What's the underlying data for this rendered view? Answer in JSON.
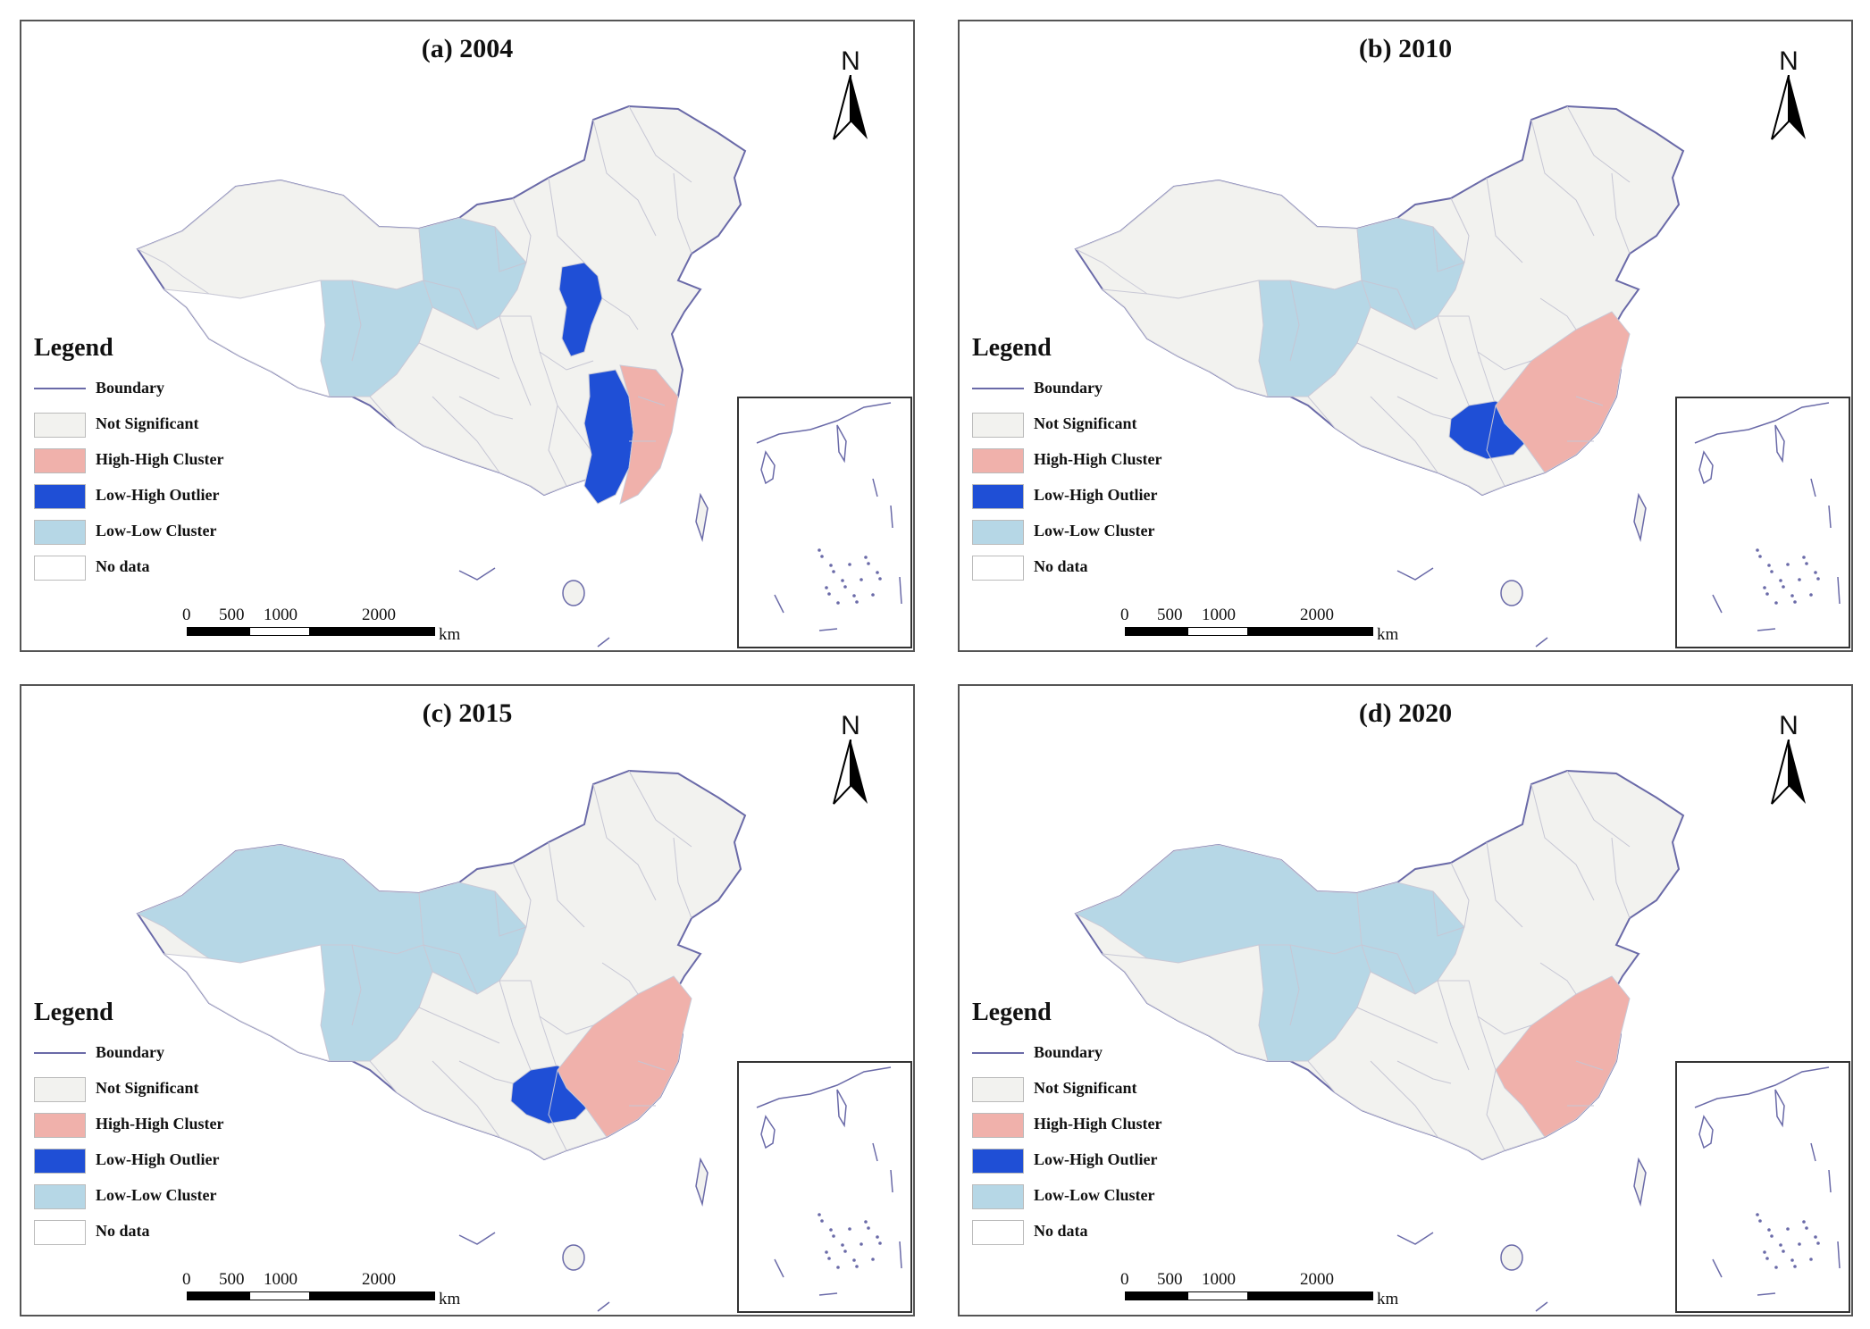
{
  "colors": {
    "boundary": "#6a6aa8",
    "not_significant": "#f2f2ef",
    "high_high": "#f0b1ab",
    "low_high": "#1f4fd6",
    "low_low": "#b6d7e6",
    "no_data": "#ffffff"
  },
  "legend": {
    "title": "Legend",
    "items": [
      {
        "label": "Boundary",
        "key": "boundary"
      },
      {
        "label": "Not Significant",
        "key": "not_significant"
      },
      {
        "label": "High-High Cluster",
        "key": "high_high"
      },
      {
        "label": "Low-High Outlier",
        "key": "low_high"
      },
      {
        "label": "Low-Low Cluster",
        "key": "low_low"
      },
      {
        "label": "No data",
        "key": "no_data"
      }
    ]
  },
  "north_arrow": {
    "label": "N"
  },
  "scale": {
    "ticks": [
      "0",
      "500",
      "1000",
      "2000"
    ],
    "unit": "km"
  },
  "panels": [
    {
      "title": "(a) 2004",
      "regions": {
        "northwest": "not_significant",
        "west": "low_low",
        "central_west": "low_low",
        "tibet": "no_data",
        "south": "not_significant",
        "north_strip": "low_high",
        "central_strip": "low_high",
        "east_coast": "high_high"
      }
    },
    {
      "title": "(b) 2010",
      "regions": {
        "northwest": "not_significant",
        "west": "low_low",
        "central_west": "low_low",
        "tibet": "not_significant",
        "south": "not_significant",
        "central_blob": "low_high",
        "east_block": "high_high"
      }
    },
    {
      "title": "(c) 2015",
      "regions": {
        "northwest": "low_low",
        "west": "low_low",
        "central_west": "low_low",
        "tibet": "no_data",
        "south": "not_significant",
        "central_blob": "low_high",
        "east_block": "high_high"
      }
    },
    {
      "title": "(d) 2020",
      "regions": {
        "northwest": "low_low",
        "west": "low_low",
        "central_west": "low_low",
        "tibet": "not_significant",
        "south": "not_significant",
        "east_block": "high_high"
      }
    }
  ]
}
